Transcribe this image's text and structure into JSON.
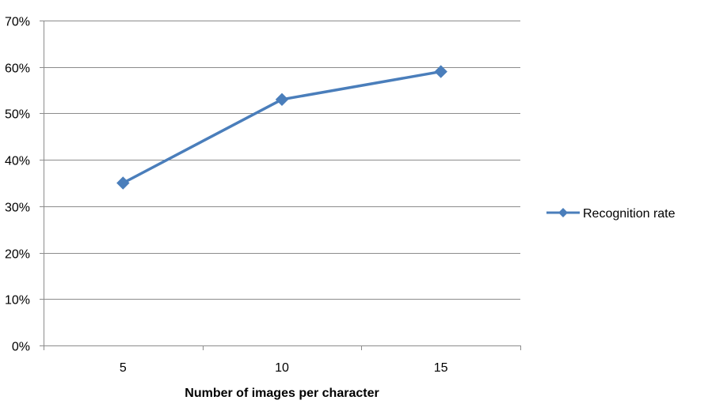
{
  "chart_data": {
    "type": "line",
    "title": "",
    "xlabel": "Number of images per character",
    "ylabel": "",
    "categories": [
      "5",
      "10",
      "15"
    ],
    "series": [
      {
        "name": "Recognition rate",
        "values": [
          0.35,
          0.53,
          0.59
        ],
        "color": "#4a7ebb",
        "marker": "diamond"
      }
    ],
    "ylim": [
      0,
      0.7
    ],
    "yticks": [
      0,
      0.1,
      0.2,
      0.3,
      0.4,
      0.5,
      0.6,
      0.7
    ],
    "ytick_labels": [
      "0%",
      "10%",
      "20%",
      "30%",
      "40%",
      "50%",
      "60%",
      "70%"
    ],
    "grid": true,
    "gridline_color": "#8c8c8c",
    "legend_position": "right"
  }
}
